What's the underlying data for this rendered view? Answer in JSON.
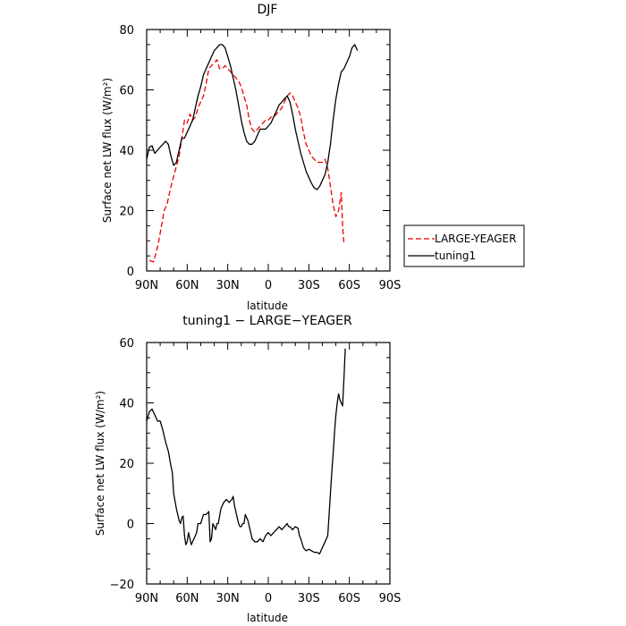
{
  "chart_data": [
    {
      "type": "line",
      "title": "DJF",
      "xlabel": "latitude",
      "ylabel": "Surface net LW flux (W/m²)",
      "xlim": [
        -90,
        90
      ],
      "ylim": [
        0,
        80
      ],
      "x_ticks": [
        -90,
        -60,
        -30,
        0,
        30,
        60,
        90
      ],
      "x_tick_labels": [
        "90N",
        "60N",
        "30N",
        "0",
        "30S",
        "60S",
        "90S"
      ],
      "y_ticks": [
        0,
        20,
        40,
        60,
        80
      ],
      "legend_position": "right-outside",
      "series": [
        {
          "name": "LARGE-YEAGER",
          "color": "#ee0000",
          "style": "dashed",
          "points": [
            [
              -88,
              3.5
            ],
            [
              -85,
              3
            ],
            [
              -83,
              6
            ],
            [
              -81,
              10
            ],
            [
              -79,
              15
            ],
            [
              -77,
              20
            ],
            [
              -75,
              22
            ],
            [
              -72,
              28
            ],
            [
              -69,
              33
            ],
            [
              -66,
              38
            ],
            [
              -64,
              44
            ],
            [
              -62,
              50
            ],
            [
              -60,
              49
            ],
            [
              -58,
              52
            ],
            [
              -56,
              50
            ],
            [
              -54,
              51
            ],
            [
              -52,
              54
            ],
            [
              -50,
              56
            ],
            [
              -48,
              58
            ],
            [
              -46,
              62
            ],
            [
              -44,
              67
            ],
            [
              -42,
              68
            ],
            [
              -40,
              69
            ],
            [
              -38,
              70
            ],
            [
              -36,
              67
            ],
            [
              -34,
              67
            ],
            [
              -32,
              68
            ],
            [
              -30,
              67
            ],
            [
              -28,
              66
            ],
            [
              -26,
              65
            ],
            [
              -24,
              64
            ],
            [
              -22,
              63
            ],
            [
              -20,
              61
            ],
            [
              -18,
              58
            ],
            [
              -16,
              55
            ],
            [
              -14,
              50
            ],
            [
              -12,
              47
            ],
            [
              -10,
              46
            ],
            [
              -8,
              47
            ],
            [
              -6,
              48
            ],
            [
              -4,
              49
            ],
            [
              -2,
              50
            ],
            [
              0,
              50
            ],
            [
              2,
              51
            ],
            [
              4,
              51
            ],
            [
              6,
              52
            ],
            [
              8,
              53
            ],
            [
              10,
              54
            ],
            [
              12,
              56
            ],
            [
              14,
              58
            ],
            [
              16,
              59
            ],
            [
              18,
              58
            ],
            [
              20,
              56
            ],
            [
              22,
              54
            ],
            [
              24,
              51
            ],
            [
              26,
              46
            ],
            [
              28,
              42
            ],
            [
              30,
              40
            ],
            [
              32,
              38
            ],
            [
              34,
              37
            ],
            [
              36,
              36
            ],
            [
              38,
              36
            ],
            [
              40,
              36
            ],
            [
              42,
              37
            ],
            [
              44,
              34
            ],
            [
              46,
              28
            ],
            [
              48,
              22
            ],
            [
              50,
              18
            ],
            [
              52,
              20
            ],
            [
              54,
              26
            ],
            [
              55,
              15
            ],
            [
              56,
              9
            ]
          ]
        },
        {
          "name": "tuning1",
          "color": "#000000",
          "style": "solid",
          "points": [
            [
              -90,
              37
            ],
            [
              -88,
              41
            ],
            [
              -86,
              41.5
            ],
            [
              -84,
              39
            ],
            [
              -82,
              40
            ],
            [
              -80,
              41
            ],
            [
              -78,
              42
            ],
            [
              -76,
              43
            ],
            [
              -74,
              42
            ],
            [
              -72,
              38
            ],
            [
              -70,
              35
            ],
            [
              -68,
              36
            ],
            [
              -66,
              40
            ],
            [
              -64,
              44
            ],
            [
              -62,
              44
            ],
            [
              -60,
              46
            ],
            [
              -58,
              48
            ],
            [
              -56,
              50
            ],
            [
              -54,
              54
            ],
            [
              -52,
              58
            ],
            [
              -50,
              61
            ],
            [
              -48,
              65
            ],
            [
              -46,
              67
            ],
            [
              -44,
              69
            ],
            [
              -42,
              71
            ],
            [
              -40,
              73
            ],
            [
              -38,
              74
            ],
            [
              -36,
              75
            ],
            [
              -34,
              75
            ],
            [
              -32,
              74
            ],
            [
              -30,
              71
            ],
            [
              -28,
              68
            ],
            [
              -26,
              64
            ],
            [
              -24,
              60
            ],
            [
              -22,
              55
            ],
            [
              -20,
              50
            ],
            [
              -18,
              46
            ],
            [
              -16,
              43
            ],
            [
              -14,
              42
            ],
            [
              -12,
              42
            ],
            [
              -10,
              43
            ],
            [
              -8,
              45
            ],
            [
              -6,
              47
            ],
            [
              -4,
              47
            ],
            [
              -2,
              47
            ],
            [
              0,
              48
            ],
            [
              2,
              49
            ],
            [
              4,
              51
            ],
            [
              6,
              53
            ],
            [
              8,
              55
            ],
            [
              10,
              56
            ],
            [
              12,
              57
            ],
            [
              14,
              58
            ],
            [
              16,
              56
            ],
            [
              18,
              52
            ],
            [
              20,
              47
            ],
            [
              22,
              43
            ],
            [
              24,
              39
            ],
            [
              26,
              36
            ],
            [
              28,
              33
            ],
            [
              30,
              31
            ],
            [
              32,
              29
            ],
            [
              34,
              27.5
            ],
            [
              36,
              27
            ],
            [
              38,
              28
            ],
            [
              40,
              30
            ],
            [
              42,
              32
            ],
            [
              44,
              36
            ],
            [
              46,
              42
            ],
            [
              48,
              50
            ],
            [
              50,
              57
            ],
            [
              52,
              62
            ],
            [
              54,
              66
            ],
            [
              56,
              67
            ],
            [
              58,
              69
            ],
            [
              60,
              71
            ],
            [
              62,
              74
            ],
            [
              64,
              75
            ],
            [
              66,
              73
            ]
          ]
        }
      ]
    },
    {
      "type": "line",
      "title": "tuning1 − LARGE−YEAGER",
      "xlabel": "latitude",
      "ylabel": "Surface net LW flux (W/m²)",
      "xlim": [
        -90,
        90
      ],
      "ylim": [
        -20,
        60
      ],
      "x_ticks": [
        -90,
        -60,
        -30,
        0,
        30,
        60,
        90
      ],
      "x_tick_labels": [
        "90N",
        "60N",
        "30N",
        "0",
        "30S",
        "60S",
        "90S"
      ],
      "y_ticks": [
        -20,
        0,
        20,
        40,
        60
      ],
      "series": [
        {
          "color": "#000000",
          "style": "solid",
          "points": [
            [
              -90,
              34
            ],
            [
              -88,
              37
            ],
            [
              -86,
              38
            ],
            [
              -84,
              36
            ],
            [
              -82,
              34
            ],
            [
              -80,
              34
            ],
            [
              -78,
              31
            ],
            [
              -76,
              27
            ],
            [
              -74,
              24
            ],
            [
              -72,
              19
            ],
            [
              -71,
              17
            ],
            [
              -70,
              10
            ],
            [
              -68,
              5
            ],
            [
              -66,
              1
            ],
            [
              -65,
              0
            ],
            [
              -64,
              2
            ],
            [
              -63,
              2.5
            ],
            [
              -62,
              -4
            ],
            [
              -61,
              -7
            ],
            [
              -60,
              -6
            ],
            [
              -59,
              -3
            ],
            [
              -58,
              -5
            ],
            [
              -57,
              -7
            ],
            [
              -55,
              -5
            ],
            [
              -53,
              -3
            ],
            [
              -52,
              0
            ],
            [
              -50,
              0
            ],
            [
              -48,
              3
            ],
            [
              -46,
              3
            ],
            [
              -44,
              4
            ],
            [
              -43,
              -6
            ],
            [
              -42,
              -5
            ],
            [
              -41,
              0
            ],
            [
              -40,
              -1
            ],
            [
              -39,
              -2
            ],
            [
              -38,
              0
            ],
            [
              -37,
              0
            ],
            [
              -35,
              5
            ],
            [
              -33,
              7
            ],
            [
              -31,
              8
            ],
            [
              -29,
              7
            ],
            [
              -27,
              8
            ],
            [
              -26,
              9
            ],
            [
              -25,
              6
            ],
            [
              -24,
              4
            ],
            [
              -23,
              2
            ],
            [
              -22,
              0
            ],
            [
              -21,
              -1
            ],
            [
              -20,
              -1
            ],
            [
              -19,
              0
            ],
            [
              -18,
              0
            ],
            [
              -17,
              3
            ],
            [
              -16,
              2
            ],
            [
              -15,
              1
            ],
            [
              -14,
              -1
            ],
            [
              -13,
              -3
            ],
            [
              -12,
              -5
            ],
            [
              -10,
              -6
            ],
            [
              -8,
              -6
            ],
            [
              -6,
              -5
            ],
            [
              -4,
              -6
            ],
            [
              -2,
              -4
            ],
            [
              0,
              -3
            ],
            [
              2,
              -4
            ],
            [
              4,
              -3
            ],
            [
              6,
              -2
            ],
            [
              8,
              -1
            ],
            [
              10,
              -2
            ],
            [
              12,
              -1
            ],
            [
              14,
              0
            ],
            [
              15,
              -1
            ],
            [
              16,
              -1
            ],
            [
              18,
              -2
            ],
            [
              20,
              -1
            ],
            [
              22,
              -1.5
            ],
            [
              23,
              -4
            ],
            [
              24,
              -5
            ],
            [
              26,
              -8
            ],
            [
              28,
              -9
            ],
            [
              30,
              -8.5
            ],
            [
              32,
              -9
            ],
            [
              34,
              -9.5
            ],
            [
              36,
              -9.5
            ],
            [
              38,
              -10
            ],
            [
              40,
              -8
            ],
            [
              42,
              -6
            ],
            [
              44,
              -4
            ],
            [
              45,
              3
            ],
            [
              46,
              10
            ],
            [
              47,
              17
            ],
            [
              48,
              23
            ],
            [
              49,
              30
            ],
            [
              50,
              36
            ],
            [
              51,
              40
            ],
            [
              52,
              43
            ],
            [
              53,
              41
            ],
            [
              54,
              40
            ],
            [
              55,
              39
            ],
            [
              56,
              48
            ],
            [
              57,
              58
            ]
          ]
        }
      ]
    }
  ]
}
